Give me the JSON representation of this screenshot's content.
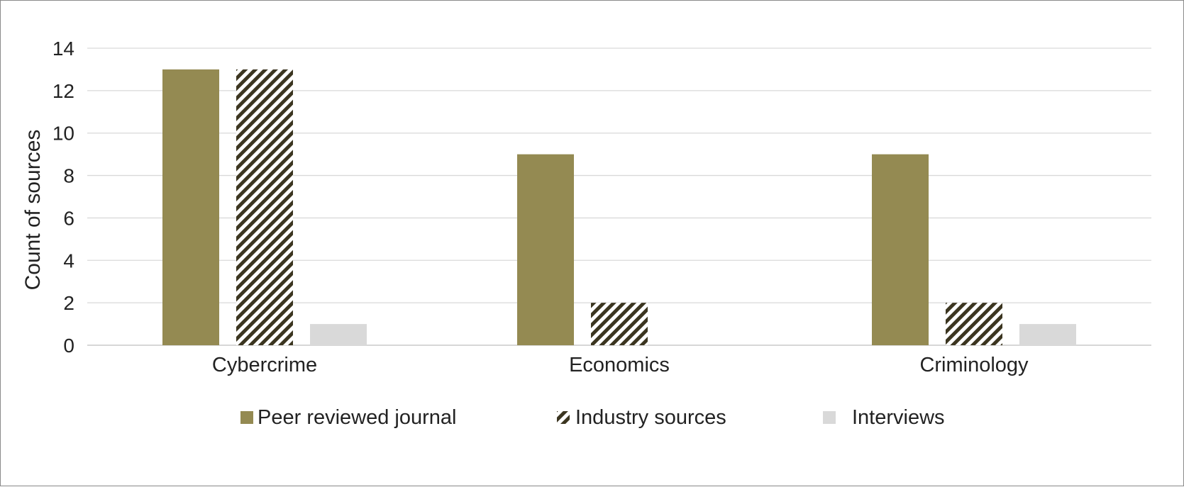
{
  "chart_data": {
    "type": "bar",
    "categories": [
      "Cybercrime",
      "Economics",
      "Criminology"
    ],
    "series": [
      {
        "name": "Peer reviewed journal",
        "values": [
          13,
          9,
          9
        ],
        "color": "#948a52",
        "pattern": "solid"
      },
      {
        "name": "Industry sources",
        "values": [
          13,
          2,
          2
        ],
        "color": "#3b3520",
        "pattern": "diagonal-hatch"
      },
      {
        "name": "Interviews",
        "values": [
          1,
          0,
          1
        ],
        "color": "#d9d9d9",
        "pattern": "solid"
      }
    ],
    "ylabel": "Count of sources",
    "xlabel": "",
    "ylim": [
      0,
      14
    ],
    "yticks": [
      "0",
      "2",
      "4",
      "6",
      "8",
      "10",
      "12",
      "14"
    ],
    "grid": true,
    "legend_position": "bottom"
  }
}
